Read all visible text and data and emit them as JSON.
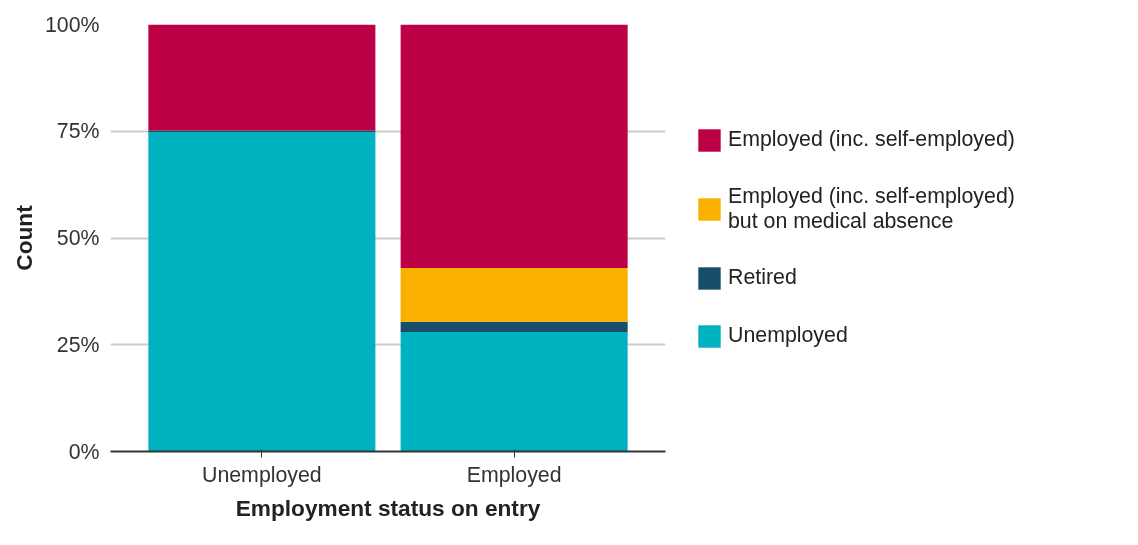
{
  "chart_data": {
    "type": "bar",
    "stacked": true,
    "xlabel": "Employment status on entry",
    "ylabel": "Count",
    "categories": [
      "Unemployed",
      "Employed"
    ],
    "series": [
      {
        "name": "Unemployed",
        "color": "#00b2bf",
        "values": [
          74.8,
          28.0
        ]
      },
      {
        "name": "Retired",
        "color": "#184e6a",
        "values": [
          0.4,
          2.4
        ]
      },
      {
        "name": "Employed (inc. self-employed)\nbut on medical absence",
        "color": "#fbb000",
        "values": [
          null,
          12.6
        ]
      },
      {
        "name": "Employed (inc. self-employed)",
        "color": "#bb0045",
        "values": [
          24.8,
          57.0
        ]
      }
    ],
    "ylim": [
      0,
      100
    ],
    "yticks": [
      {
        "value": 0,
        "label": "0%"
      },
      {
        "value": 25,
        "label": "25%"
      },
      {
        "value": 50,
        "label": "50%"
      },
      {
        "value": 75,
        "label": "75%"
      },
      {
        "value": 100,
        "label": "100%"
      }
    ],
    "grid": "y",
    "legend": "right"
  }
}
